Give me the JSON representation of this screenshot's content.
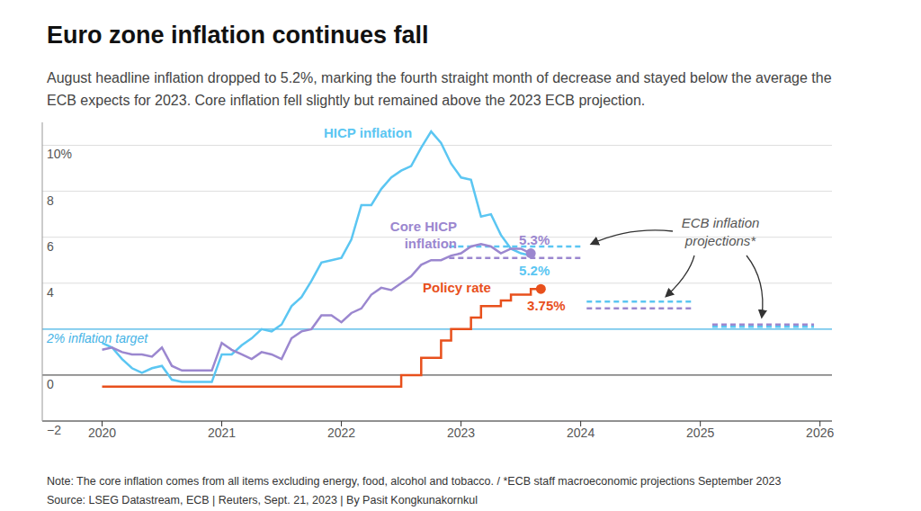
{
  "chart_data": {
    "type": "line",
    "title": "Euro zone inflation continues fall",
    "subtitle": "August headline inflation dropped to 5.2%, marking the fourth straight month of decrease and stayed below the average the ECB expects for 2023. Core inflation fell slightly but remained above the 2023 ECB projection.",
    "x": [
      2020,
      2020.083,
      2020.167,
      2020.25,
      2020.333,
      2020.417,
      2020.5,
      2020.583,
      2020.667,
      2020.75,
      2020.833,
      2020.917,
      2021,
      2021.083,
      2021.167,
      2021.25,
      2021.333,
      2021.417,
      2021.5,
      2021.583,
      2021.667,
      2021.75,
      2021.833,
      2021.917,
      2022,
      2022.083,
      2022.167,
      2022.25,
      2022.333,
      2022.417,
      2022.5,
      2022.583,
      2022.667,
      2022.75,
      2022.833,
      2022.917,
      2023,
      2023.083,
      2023.167,
      2023.25,
      2023.333,
      2023.417,
      2023.5,
      2023.583,
      2023.667
    ],
    "xlim": [
      2019.5,
      2026.1
    ],
    "xticks": [
      2020,
      2021,
      2022,
      2023,
      2024,
      2025,
      2026
    ],
    "ylim": [
      -2,
      11
    ],
    "yticks": [
      {
        "value": -2,
        "label": "−2"
      },
      0,
      4,
      6,
      8,
      {
        "value": 10,
        "label": "10%"
      }
    ],
    "grid": true,
    "series": [
      {
        "name": "HICP inflation",
        "color": "#5bc6f2",
        "line_style": "solid",
        "marker": "none",
        "values": [
          1.4,
          1.2,
          0.7,
          0.3,
          0.1,
          0.3,
          0.4,
          -0.2,
          -0.3,
          -0.3,
          -0.3,
          -0.3,
          0.9,
          0.9,
          1.3,
          1.6,
          2.0,
          1.9,
          2.2,
          3.0,
          3.4,
          4.1,
          4.9,
          5.0,
          5.1,
          5.9,
          7.4,
          7.4,
          8.1,
          8.6,
          8.9,
          9.1,
          9.9,
          10.6,
          10.1,
          9.2,
          8.6,
          8.5,
          6.9,
          7.0,
          6.1,
          5.5,
          5.3,
          5.2,
          null
        ],
        "value_labels": [
          null,
          null,
          null,
          null,
          null,
          null,
          null,
          null,
          null,
          null,
          null,
          null,
          null,
          null,
          null,
          null,
          null,
          null,
          null,
          null,
          null,
          null,
          null,
          null,
          null,
          null,
          null,
          null,
          null,
          null,
          null,
          null,
          null,
          null,
          null,
          null,
          null,
          null,
          null,
          null,
          null,
          null,
          null,
          "5.2%",
          null
        ]
      },
      {
        "name": "Core HICP inflation",
        "color": "#9b87cf",
        "line_style": "solid",
        "marker": "end",
        "values": [
          1.1,
          1.2,
          1.0,
          0.9,
          0.9,
          0.8,
          1.2,
          0.4,
          0.2,
          0.2,
          0.2,
          0.2,
          1.4,
          1.1,
          0.9,
          0.7,
          1.0,
          0.9,
          0.7,
          1.6,
          1.9,
          2.0,
          2.6,
          2.6,
          2.3,
          2.7,
          2.9,
          3.5,
          3.8,
          3.7,
          4.0,
          4.3,
          4.8,
          5.0,
          5.0,
          5.2,
          5.3,
          5.6,
          5.7,
          5.6,
          5.3,
          5.5,
          5.5,
          5.3,
          null
        ],
        "value_labels": [
          null,
          null,
          null,
          null,
          null,
          null,
          null,
          null,
          null,
          null,
          null,
          null,
          null,
          null,
          null,
          null,
          null,
          null,
          null,
          null,
          null,
          null,
          null,
          null,
          null,
          null,
          null,
          null,
          null,
          null,
          null,
          null,
          null,
          null,
          null,
          null,
          null,
          null,
          null,
          null,
          null,
          null,
          null,
          "5.3%",
          null
        ]
      },
      {
        "name": "Policy rate",
        "color": "#e8501c",
        "line_style": "step",
        "marker": "end",
        "values": [
          -0.5,
          -0.5,
          -0.5,
          -0.5,
          -0.5,
          -0.5,
          -0.5,
          -0.5,
          -0.5,
          -0.5,
          -0.5,
          -0.5,
          -0.5,
          -0.5,
          -0.5,
          -0.5,
          -0.5,
          -0.5,
          -0.5,
          -0.5,
          -0.5,
          -0.5,
          -0.5,
          -0.5,
          -0.5,
          -0.5,
          -0.5,
          -0.5,
          -0.5,
          -0.5,
          0,
          0,
          0.75,
          0.75,
          1.5,
          2.0,
          2.0,
          2.5,
          3.0,
          3.0,
          3.25,
          3.5,
          3.5,
          3.75,
          3.75
        ],
        "value_labels": [
          null,
          null,
          null,
          null,
          null,
          null,
          null,
          null,
          null,
          null,
          null,
          null,
          null,
          null,
          null,
          null,
          null,
          null,
          null,
          null,
          null,
          null,
          null,
          null,
          null,
          null,
          null,
          null,
          null,
          null,
          null,
          null,
          null,
          null,
          null,
          null,
          null,
          null,
          null,
          null,
          null,
          null,
          null,
          null,
          "3.75%"
        ]
      }
    ],
    "target": {
      "value": 2,
      "label": "2% inflation target",
      "color": "#45b3e6"
    },
    "projections": {
      "label": "ECB inflation projections*",
      "line_style": "dashed",
      "x_start": [
        2022.9,
        2024.05,
        2025.1
      ],
      "x_end": [
        2024.0,
        2024.95,
        2025.95
      ],
      "series": [
        {
          "color": "#5bc6f2",
          "values": [
            5.6,
            3.2,
            2.1
          ]
        },
        {
          "color": "#9b87cf",
          "values": [
            5.1,
            2.9,
            2.2
          ]
        }
      ]
    },
    "notes": [
      "Note: The core inflation comes from all items excluding energy, food, alcohol and tobacco. / *ECB staff macroeconomic projections September 2023",
      "Source: LSEG Datastream, ECB | Reuters, Sept. 21, 2023 | By Pasit Kongkunakornkul"
    ]
  }
}
